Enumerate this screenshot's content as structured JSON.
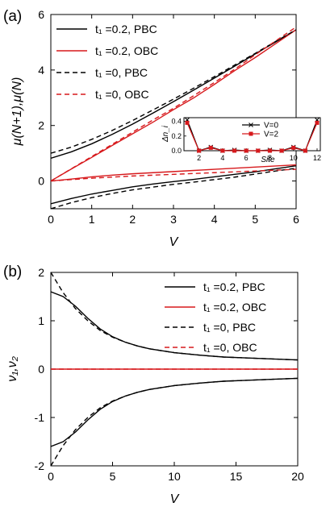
{
  "colors": {
    "black": "#000000",
    "red": "#d7191c"
  },
  "chart_data": [
    {
      "panel": "(a)",
      "type": "line",
      "xlabel": "V",
      "ylabel": "μ(N+1),μ(N)",
      "xlim": [
        0,
        6
      ],
      "ylim": [
        -1,
        6
      ],
      "xticks": [
        "0",
        "1",
        "2",
        "3",
        "4",
        "5",
        "6"
      ],
      "yticks": [
        "0",
        "2",
        "4",
        "6"
      ],
      "legend_position": "top-left",
      "legend": [
        {
          "label": "t₁ =0.2, PBC",
          "color": "#000000",
          "style": "solid"
        },
        {
          "label": "t₁ =0.2, OBC",
          "color": "#d7191c",
          "style": "solid"
        },
        {
          "label": "t₁ =0,    PBC",
          "color": "#000000",
          "style": "dashed"
        },
        {
          "label": "t₁ =0,    OBC",
          "color": "#d7191c",
          "style": "dashed"
        }
      ],
      "series": [
        {
          "name": "t₁ =0.2, PBC",
          "color": "#000000",
          "style": "solid",
          "x": [
            0,
            0.5,
            1,
            1.5,
            2,
            2.5,
            3,
            3.5,
            4,
            4.5,
            5,
            5.5,
            6
          ],
          "y": [
            0.82,
            1.05,
            1.34,
            1.68,
            2.05,
            2.45,
            2.86,
            3.28,
            3.71,
            4.14,
            4.58,
            5.01,
            5.45
          ]
        },
        {
          "name": "t₁ =0.2, PBC",
          "color": "#000000",
          "style": "solid",
          "x": [
            0,
            0.5,
            1,
            1.5,
            2,
            2.5,
            3,
            3.5,
            4,
            4.5,
            5,
            5.5,
            6
          ],
          "y": [
            -0.82,
            -0.63,
            -0.47,
            -0.34,
            -0.21,
            -0.11,
            -0.02,
            0.06,
            0.15,
            0.24,
            0.33,
            0.44,
            0.55
          ]
        },
        {
          "name": "t₁ =0.2, OBC",
          "color": "#d7191c",
          "style": "solid",
          "x": [
            0,
            0.5,
            1,
            1.5,
            2,
            2.5,
            3,
            3.5,
            4,
            4.5,
            5,
            5.5,
            6
          ],
          "y": [
            0.0,
            0.43,
            0.85,
            1.28,
            1.7,
            2.12,
            2.57,
            3.0,
            3.48,
            3.98,
            4.45,
            4.95,
            5.45
          ]
        },
        {
          "name": "t₁ =0.2, OBC",
          "color": "#d7191c",
          "style": "solid",
          "x": [
            0,
            0.5,
            1,
            1.5,
            2,
            2.5,
            3,
            3.5,
            4,
            4.5,
            5,
            5.5,
            6
          ],
          "y": [
            0.0,
            0.07,
            0.15,
            0.21,
            0.26,
            0.3,
            0.34,
            0.38,
            0.42,
            0.46,
            0.5,
            0.54,
            0.58
          ]
        },
        {
          "name": "t₁ =0, PBC",
          "color": "#000000",
          "style": "dashed",
          "x": [
            0,
            0.5,
            1,
            1.5,
            2,
            2.5,
            3,
            3.5,
            4,
            4.5,
            5,
            5.5,
            6
          ],
          "y": [
            1.0,
            1.22,
            1.5,
            1.82,
            2.18,
            2.56,
            2.95,
            3.35,
            3.76,
            4.18,
            4.6,
            5.03,
            5.45
          ]
        },
        {
          "name": "t₁ =0, PBC",
          "color": "#000000",
          "style": "dashed",
          "x": [
            0,
            0.5,
            1,
            1.5,
            2,
            2.5,
            3,
            3.5,
            4,
            4.5,
            5,
            5.5,
            6
          ],
          "y": [
            -1.0,
            -0.78,
            -0.6,
            -0.45,
            -0.32,
            -0.22,
            -0.12,
            -0.04,
            0.05,
            0.14,
            0.25,
            0.36,
            0.46
          ]
        },
        {
          "name": "t₁ =0, OBC",
          "color": "#d7191c",
          "style": "dashed",
          "x": [
            0,
            0.5,
            1,
            1.5,
            2,
            2.5,
            3,
            3.5,
            4,
            4.5,
            5,
            5.5,
            6
          ],
          "y": [
            0.0,
            0.44,
            0.88,
            1.32,
            1.76,
            2.2,
            2.62,
            3.08,
            3.55,
            4.03,
            4.55,
            5.05,
            5.55
          ]
        },
        {
          "name": "t₁ =0, OBC",
          "color": "#d7191c",
          "style": "dashed",
          "x": [
            0,
            0.5,
            1,
            1.5,
            2,
            2.5,
            3,
            3.5,
            4,
            4.5,
            5,
            5.5,
            6
          ],
          "y": [
            0.0,
            0.05,
            0.1,
            0.14,
            0.18,
            0.21,
            0.24,
            0.27,
            0.3,
            0.33,
            0.36,
            0.39,
            0.42
          ]
        }
      ],
      "inset": {
        "type": "line",
        "xlabel": "Site",
        "ylabel": "Δn_i",
        "xlim": [
          1,
          12
        ],
        "ylim": [
          0,
          0.45
        ],
        "xticks": [
          "2",
          "4",
          "6",
          "8",
          "10",
          "12"
        ],
        "yticks": [
          "0.0",
          "0.2",
          "0.4"
        ],
        "legend": [
          {
            "label": "V=0",
            "color": "#000000",
            "marker": "x"
          },
          {
            "label": "V=2",
            "color": "#d7191c",
            "marker": "square"
          }
        ],
        "series": [
          {
            "name": "V=0",
            "color": "#000000",
            "x": [
              1,
              2,
              3,
              4,
              5,
              6,
              7,
              8,
              9,
              10,
              11,
              12
            ],
            "y": [
              0.42,
              0.0,
              0.05,
              0.0,
              0.01,
              0.0,
              0.0,
              0.01,
              0.0,
              0.05,
              0.0,
              0.42
            ]
          },
          {
            "name": "V=2",
            "color": "#d7191c",
            "x": [
              1,
              2,
              3,
              4,
              5,
              6,
              7,
              8,
              9,
              10,
              11,
              12
            ],
            "y": [
              0.38,
              0.0,
              0.04,
              0.0,
              0.0,
              0.0,
              0.0,
              0.0,
              0.0,
              0.04,
              0.0,
              0.38
            ]
          }
        ]
      }
    },
    {
      "panel": "(b)",
      "type": "line",
      "xlabel": "V",
      "ylabel": "ν₁,ν₂",
      "xlim": [
        0,
        20
      ],
      "ylim": [
        -2,
        2
      ],
      "xticks": [
        "0",
        "5",
        "10",
        "15",
        "20"
      ],
      "yticks": [
        "-2",
        "-1",
        "0",
        "1",
        "2"
      ],
      "legend_position": "top-right",
      "legend": [
        {
          "label": "t₁ =0.2, PBC",
          "color": "#000000",
          "style": "solid"
        },
        {
          "label": "t₁ =0.2, OBC",
          "color": "#d7191c",
          "style": "solid"
        },
        {
          "label": "t₁ =0,    PBC",
          "color": "#000000",
          "style": "dashed"
        },
        {
          "label": "t₁ =0,    OBC",
          "color": "#d7191c",
          "style": "dashed"
        }
      ],
      "series": [
        {
          "name": "t₁ =0.2, PBC",
          "color": "#000000",
          "style": "solid",
          "x": [
            0,
            1,
            2,
            3,
            4,
            5,
            6,
            7,
            8,
            10,
            12,
            14,
            16,
            18,
            20
          ],
          "y": [
            1.6,
            1.5,
            1.3,
            1.05,
            0.83,
            0.67,
            0.56,
            0.48,
            0.42,
            0.34,
            0.29,
            0.25,
            0.23,
            0.21,
            0.19
          ]
        },
        {
          "name": "t₁ =0.2, PBC",
          "color": "#000000",
          "style": "solid",
          "x": [
            0,
            1,
            2,
            3,
            4,
            5,
            6,
            7,
            8,
            10,
            12,
            14,
            16,
            18,
            20
          ],
          "y": [
            -1.6,
            -1.5,
            -1.3,
            -1.05,
            -0.83,
            -0.67,
            -0.56,
            -0.48,
            -0.42,
            -0.34,
            -0.29,
            -0.25,
            -0.23,
            -0.21,
            -0.19
          ]
        },
        {
          "name": "t₁ =0, PBC",
          "color": "#000000",
          "style": "dashed",
          "x": [
            0,
            1,
            2,
            3,
            4,
            5,
            6,
            7,
            8,
            10,
            12,
            14,
            16,
            18,
            20
          ],
          "y": [
            2.0,
            1.58,
            1.25,
            1.0,
            0.8,
            0.66,
            0.56,
            0.48,
            0.42,
            0.34,
            0.29,
            0.25,
            0.23,
            0.21,
            0.19
          ]
        },
        {
          "name": "t₁ =0, PBC",
          "color": "#000000",
          "style": "dashed",
          "x": [
            0,
            1,
            2,
            3,
            4,
            5,
            6,
            7,
            8,
            10,
            12,
            14,
            16,
            18,
            20
          ],
          "y": [
            -2.0,
            -1.58,
            -1.25,
            -1.0,
            -0.8,
            -0.66,
            -0.56,
            -0.48,
            -0.42,
            -0.34,
            -0.29,
            -0.25,
            -0.23,
            -0.21,
            -0.19
          ]
        },
        {
          "name": "t₁ =0.2, OBC",
          "color": "#d7191c",
          "style": "solid",
          "x": [
            0,
            20
          ],
          "y": [
            0,
            0
          ]
        },
        {
          "name": "t₁ =0, OBC",
          "color": "#d7191c",
          "style": "dashed",
          "x": [
            0,
            20
          ],
          "y": [
            0,
            0
          ]
        }
      ]
    }
  ]
}
